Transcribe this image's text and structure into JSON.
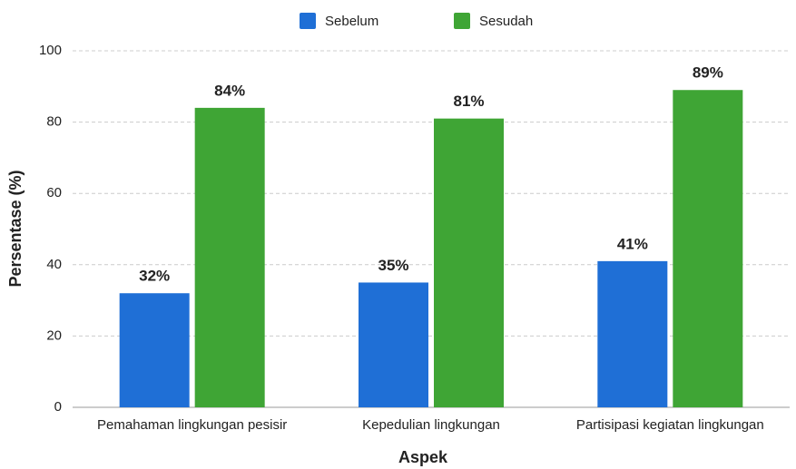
{
  "chart_data": {
    "type": "bar",
    "categories": [
      "Pemahaman lingkungan pesisir",
      "Kepedulian lingkungan",
      "Partisipasi kegiatan lingkungan"
    ],
    "series": [
      {
        "name": "Sebelum",
        "color": "#1f6fd6",
        "label_color": "#1a3a9a",
        "values": [
          32,
          35,
          41
        ],
        "value_labels": [
          "32%",
          "35%",
          "41%"
        ]
      },
      {
        "name": "Sesudah",
        "color": "#3fa535",
        "label_color": "#3a9a2a",
        "values": [
          84,
          81,
          89
        ],
        "value_labels": [
          "84%",
          "81%",
          "89%"
        ]
      }
    ],
    "xlabel": "Aspek",
    "ylabel": "Persentase (%)",
    "ylim": [
      0,
      100
    ],
    "yticks": [
      0,
      20,
      40,
      60,
      80,
      100
    ],
    "grid": true,
    "legend": "top"
  }
}
